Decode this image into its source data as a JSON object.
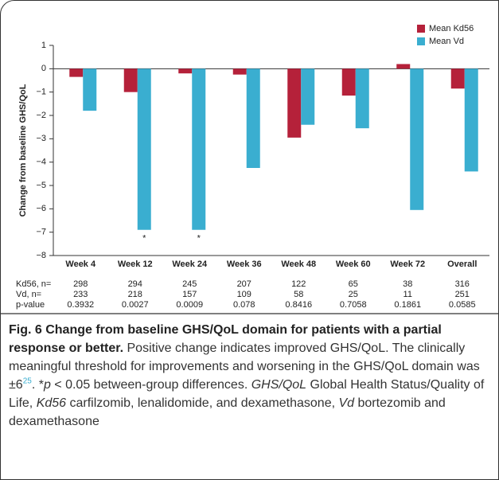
{
  "chart_data": {
    "type": "bar",
    "y_label": "Change from baseline GHS/QoL",
    "categories": [
      "Week 4",
      "Week 12",
      "Week 24",
      "Week 36",
      "Week 48",
      "Week 60",
      "Week 72",
      "Overall"
    ],
    "series": [
      {
        "name": "Mean Kd56",
        "color": "#b5213a",
        "values": [
          -0.35,
          -1.0,
          -0.2,
          -0.25,
          -2.95,
          -1.15,
          0.2,
          -0.85
        ]
      },
      {
        "name": "Mean Vd",
        "color": "#3aaed0",
        "values": [
          -1.8,
          -6.9,
          -6.9,
          -4.25,
          -2.4,
          -2.55,
          -6.05,
          -4.4
        ],
        "marks": [
          null,
          "*",
          "*",
          null,
          null,
          null,
          null,
          null
        ]
      }
    ],
    "ylim": [
      -8,
      1
    ],
    "yticks": [
      {
        "value": -8,
        "label": "−8"
      },
      {
        "value": -7,
        "label": "−7"
      },
      {
        "value": -6,
        "label": "−6"
      },
      {
        "value": -5,
        "label": "−5"
      },
      {
        "value": -4,
        "label": "−4"
      },
      {
        "value": -3,
        "label": "−3"
      },
      {
        "value": -2,
        "label": "−2"
      },
      {
        "value": -1,
        "label": "−1"
      },
      0,
      1
    ],
    "legend": "top-right",
    "table": [
      {
        "label": "Kd56, n=",
        "values": [
          298,
          294,
          245,
          207,
          122,
          65,
          38,
          316
        ]
      },
      {
        "label": "Vd, n=",
        "values": [
          233,
          218,
          157,
          109,
          58,
          25,
          11,
          251
        ]
      },
      {
        "label": "p-value",
        "values": [
          0.3932,
          0.0027,
          0.0009,
          0.078,
          0.8416,
          0.7058,
          0.1861,
          0.0585
        ]
      }
    ]
  },
  "caption": {
    "title": "Fig. 6 Change from baseline GHS/QoL domain for patients with a partial response or better.",
    "parts": [
      " Positive change indicates improved GHS/QoL. The clinically meaningful threshold for improvements and worsening in the GHS/QoL domain was ±6",
      "25",
      ". *",
      "p",
      " < 0.05 between-group differences. ",
      "GHS/QoL",
      " Global Health Status/Quality of Life, ",
      "Kd56",
      " carfilzomib, lenalidomide, and dexamethasone, ",
      "Vd",
      " bortezomib and dexamethasone"
    ]
  }
}
